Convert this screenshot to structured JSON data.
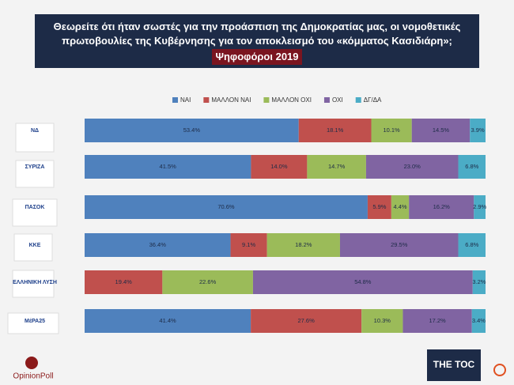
{
  "chart_data": {
    "type": "stacked_barh",
    "title": "Θεωρείτε ότι ήταν σωστές για την προάσπιση της Δημοκρατίας μας,  οι νομοθετικές πρωτοβουλίες της Κυβέρνησης για τον αποκλεισμό του «κόμματος Κασιδιάρη»;",
    "subtitle": "Ψηφοφόροι 2019",
    "categories": [
      "ΝΔ",
      "ΣΥΡΙΖΑ",
      "ΠΑΣΟΚ",
      "ΚΚΕ",
      "ΕΛΛΗΝΙΚΗ ΛΥΣΗ",
      "ΜέΡΑ25"
    ],
    "series": [
      {
        "name": "ΝΑΙ",
        "color": "#4f81bd",
        "values": [
          53.4,
          41.5,
          70.6,
          36.4,
          null,
          41.4
        ],
        "value_labels": [
          "53.4%",
          "41.5%",
          "70.6%",
          "36.4%",
          null,
          "41.4%"
        ]
      },
      {
        "name": "ΜΑΛΛΟΝ ΝΑΙ",
        "color": "#c0504d",
        "values": [
          18.1,
          14.0,
          5.9,
          9.1,
          19.4,
          27.6
        ],
        "value_labels": [
          "18.1%",
          "14.0%",
          "5.9%",
          "9.1%",
          "19.4%",
          "27.6%"
        ]
      },
      {
        "name": "ΜΑΛΛΟΝ ΟΧΙ",
        "color": "#9bbb59",
        "values": [
          10.1,
          14.7,
          4.4,
          18.2,
          22.6,
          10.3
        ],
        "value_labels": [
          "10.1%",
          "14.7%",
          "4.4%",
          "18.2%",
          "22.6%",
          "10.3%"
        ]
      },
      {
        "name": "ΟΧΙ",
        "color": "#8064a2",
        "values": [
          14.5,
          23.0,
          16.2,
          29.5,
          54.8,
          17.2
        ],
        "value_labels": [
          "14.5%",
          "23.0%",
          "16.2%",
          "29.5%",
          "54.8%",
          "17.2%"
        ]
      },
      {
        "name": "ΔΓ/ΔΑ",
        "color": "#4bacc6",
        "values": [
          3.9,
          6.8,
          2.9,
          6.8,
          3.2,
          3.4
        ],
        "value_labels": [
          "3.9%",
          "6.8%",
          "2.9%",
          "6.8%",
          "3.2%",
          "3.4%"
        ]
      }
    ],
    "legend": "top",
    "source": "OpinionPoll",
    "brand": "THE TOC"
  }
}
